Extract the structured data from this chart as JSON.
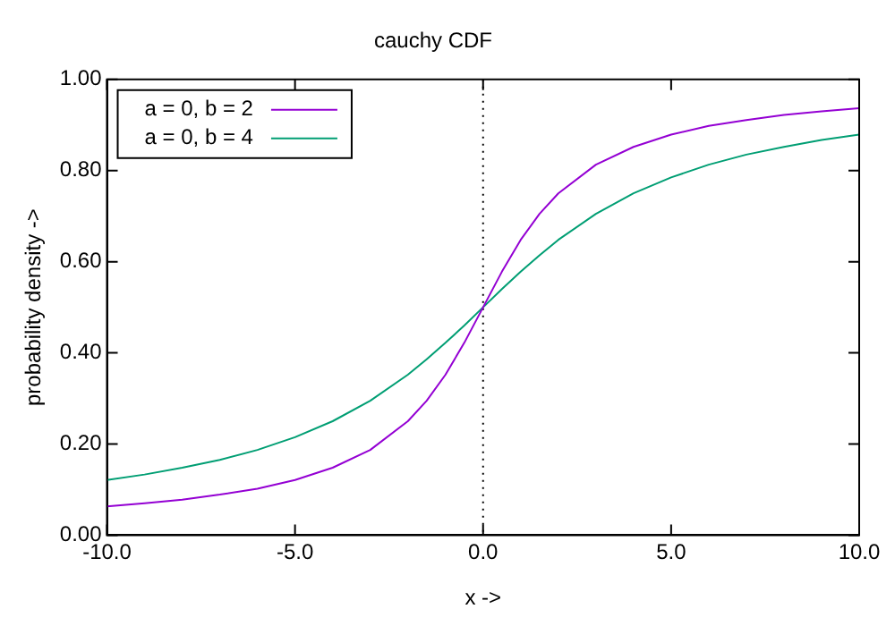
{
  "chart_data": {
    "type": "line",
    "title": "cauchy CDF",
    "xlabel": "x ->",
    "ylabel": "probability density ->",
    "x": [
      -10,
      -9,
      -8,
      -7,
      -6,
      -5,
      -4,
      -3,
      -2,
      -1.5,
      -1,
      -0.5,
      0,
      0.5,
      1,
      1.5,
      2,
      3,
      4,
      5,
      6,
      7,
      8,
      9,
      10
    ],
    "series": [
      {
        "name": "a = 0, b = 2",
        "color": "#9400d3",
        "values": [
          0.063,
          0.07,
          0.078,
          0.089,
          0.102,
          0.121,
          0.148,
          0.187,
          0.25,
          0.295,
          0.352,
          0.422,
          0.5,
          0.578,
          0.648,
          0.705,
          0.75,
          0.813,
          0.852,
          0.879,
          0.898,
          0.911,
          0.922,
          0.93,
          0.937
        ]
      },
      {
        "name": "a = 0, b = 4",
        "color": "#009e73",
        "values": [
          0.121,
          0.133,
          0.148,
          0.165,
          0.187,
          0.215,
          0.25,
          0.295,
          0.352,
          0.386,
          0.422,
          0.46,
          0.5,
          0.54,
          0.578,
          0.614,
          0.648,
          0.705,
          0.75,
          0.785,
          0.813,
          0.835,
          0.852,
          0.867,
          0.879
        ]
      }
    ],
    "xlim": [
      -10,
      10
    ],
    "ylim": [
      0,
      1
    ],
    "xticks": [
      {
        "value": -10,
        "label": "-10.0"
      },
      {
        "value": -5,
        "label": "-5.0"
      },
      {
        "value": 0,
        "label": "0.0"
      },
      {
        "value": 5,
        "label": "5.0"
      },
      {
        "value": 10,
        "label": "10.0"
      }
    ],
    "yticks": [
      {
        "value": 0,
        "label": "0.00"
      },
      {
        "value": 0.2,
        "label": "0.20"
      },
      {
        "value": 0.4,
        "label": "0.40"
      },
      {
        "value": 0.6,
        "label": "0.60"
      },
      {
        "value": 0.8,
        "label": "0.80"
      },
      {
        "value": 1,
        "label": "1.00"
      }
    ],
    "ref_lines": [
      {
        "axis": "x",
        "value": 0,
        "line_style": "dotted",
        "color": "#000000"
      }
    ],
    "legend": "top left",
    "grid": false,
    "marker": "none",
    "line_style": "solid"
  }
}
